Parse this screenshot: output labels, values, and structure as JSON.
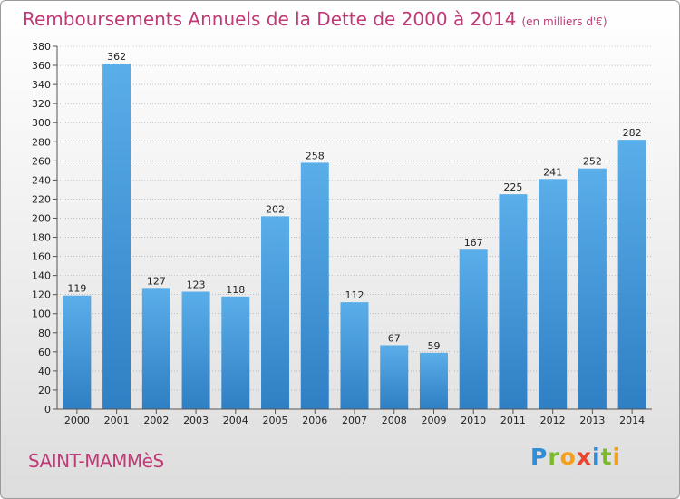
{
  "title": "Remboursements Annuels de la Dette de 2000 à 2014",
  "subtitle": "(en milliers d'€)",
  "town": "SAINT-MAMMèS",
  "logo": {
    "letters": [
      "P",
      "r",
      "o",
      "x",
      "i",
      "t",
      "i"
    ],
    "colors": [
      "#2e8fd8",
      "#7cb92c",
      "#f5a01a",
      "#e8442e",
      "#2e8fd8",
      "#7cb92c",
      "#f5a01a"
    ]
  },
  "colors": {
    "bar_light": "#5aaee9",
    "bar_dark": "#2f7fc4",
    "title": "#c03a78",
    "grid": "#9aa0a8"
  },
  "chart_data": {
    "type": "bar",
    "title": "Remboursements Annuels de la Dette de 2000 à 2014",
    "xlabel": "",
    "ylabel": "(en milliers d'€)",
    "categories": [
      "2000",
      "2001",
      "2002",
      "2003",
      "2004",
      "2005",
      "2006",
      "2007",
      "2008",
      "2009",
      "2010",
      "2011",
      "2012",
      "2013",
      "2014"
    ],
    "values": [
      119,
      362,
      127,
      123,
      118,
      202,
      258,
      112,
      67,
      59,
      167,
      225,
      241,
      252,
      282
    ],
    "ylim": [
      0,
      380
    ],
    "yticks": [
      0,
      20,
      40,
      60,
      80,
      100,
      120,
      140,
      160,
      180,
      200,
      220,
      240,
      260,
      280,
      300,
      320,
      340,
      360,
      380
    ],
    "grid": true
  }
}
